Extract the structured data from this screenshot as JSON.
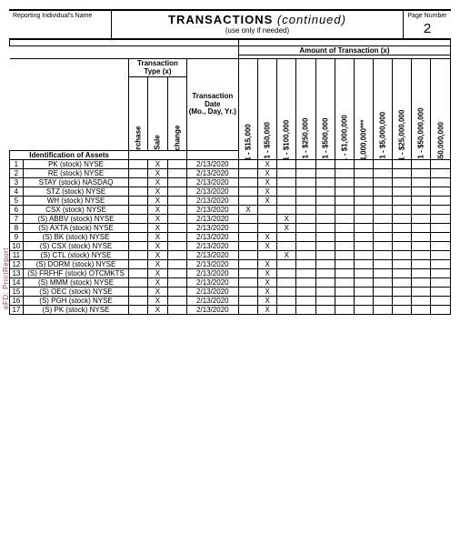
{
  "side_label": "eFD: PrintReport",
  "header": {
    "reporting_label": "Reporting Individual's Name",
    "title_bold": "TRANSACTIONS",
    "title_italic": "(continued)",
    "subtitle": "(use only if needed)",
    "page_label": "Page Number",
    "page_number": "2"
  },
  "columns": {
    "amount_header": "Amount of Transaction (x)",
    "ttype_l1": "Transaction",
    "ttype_l2": "Type (x)",
    "tdate_l1": "Transaction",
    "tdate_l2": "Date",
    "tdate_l3": "(Mo., Day, Yr.)",
    "purchase": "Purchase",
    "sale": "Sale",
    "exchange": "Exchange",
    "id_assets": "Identification of Assets",
    "amounts": [
      "$1,001 - $15,000",
      "$15,001 - $50,000",
      "$50,001 - $100,000",
      "$100,001 - $250,000",
      "$250,001 - $500,000",
      "$500,001 - $1,000,000",
      "Over $1,000,000***",
      "$1,000,001 - $5,000,000",
      "$5,000,001 - $25,000,000",
      "$25,000,001 - $50,000,000",
      "Over $50,000,000"
    ]
  },
  "mark": "X",
  "rows": [
    {
      "n": "1",
      "asset": "PK (stock) NYSE",
      "purchase": "",
      "sale": "X",
      "exchange": "",
      "date": "2/13/2020",
      "amt": [
        0,
        1,
        0,
        0,
        0,
        0,
        0,
        0,
        0,
        0,
        0
      ]
    },
    {
      "n": "2",
      "asset": "RE (stock) NYSE",
      "purchase": "",
      "sale": "X",
      "exchange": "",
      "date": "2/13/2020",
      "amt": [
        0,
        1,
        0,
        0,
        0,
        0,
        0,
        0,
        0,
        0,
        0
      ]
    },
    {
      "n": "3",
      "asset": "STAY (stock) NASDAQ",
      "purchase": "",
      "sale": "X",
      "exchange": "",
      "date": "2/13/2020",
      "amt": [
        0,
        1,
        0,
        0,
        0,
        0,
        0,
        0,
        0,
        0,
        0
      ]
    },
    {
      "n": "4",
      "asset": "STZ (stock) NYSE",
      "purchase": "",
      "sale": "X",
      "exchange": "",
      "date": "2/13/2020",
      "amt": [
        0,
        1,
        0,
        0,
        0,
        0,
        0,
        0,
        0,
        0,
        0
      ]
    },
    {
      "n": "5",
      "asset": "WH (stock) NYSE",
      "purchase": "",
      "sale": "X",
      "exchange": "",
      "date": "2/13/2020",
      "amt": [
        0,
        1,
        0,
        0,
        0,
        0,
        0,
        0,
        0,
        0,
        0
      ]
    },
    {
      "n": "6",
      "asset": "CSX (stock) NYSE",
      "purchase": "",
      "sale": "X",
      "exchange": "",
      "date": "2/13/2020",
      "amt": [
        1,
        0,
        0,
        0,
        0,
        0,
        0,
        0,
        0,
        0,
        0
      ]
    },
    {
      "n": "7",
      "asset": "(S) ABBV (stock) NYSE",
      "purchase": "",
      "sale": "X",
      "exchange": "",
      "date": "2/13/2020",
      "amt": [
        0,
        0,
        1,
        0,
        0,
        0,
        0,
        0,
        0,
        0,
        0
      ]
    },
    {
      "n": "8",
      "asset": "(S) AXTA (stock) NYSE",
      "purchase": "",
      "sale": "X",
      "exchange": "",
      "date": "2/13/2020",
      "amt": [
        0,
        0,
        1,
        0,
        0,
        0,
        0,
        0,
        0,
        0,
        0
      ]
    },
    {
      "n": "9",
      "asset": "(S) BK (stock) NYSE",
      "purchase": "",
      "sale": "X",
      "exchange": "",
      "date": "2/13/2020",
      "amt": [
        0,
        1,
        0,
        0,
        0,
        0,
        0,
        0,
        0,
        0,
        0
      ]
    },
    {
      "n": "10",
      "asset": "(S) CSX (stock) NYSE",
      "purchase": "",
      "sale": "X",
      "exchange": "",
      "date": "2/13/2020",
      "amt": [
        0,
        1,
        0,
        0,
        0,
        0,
        0,
        0,
        0,
        0,
        0
      ]
    },
    {
      "n": "11",
      "asset": "(S) CTL (stock) NYSE",
      "purchase": "",
      "sale": "X",
      "exchange": "",
      "date": "2/13/2020",
      "amt": [
        0,
        0,
        1,
        0,
        0,
        0,
        0,
        0,
        0,
        0,
        0
      ]
    },
    {
      "n": "12",
      "asset": "(S) DORM (stock) NYSE",
      "purchase": "",
      "sale": "X",
      "exchange": "",
      "date": "2/13/2020",
      "amt": [
        0,
        1,
        0,
        0,
        0,
        0,
        0,
        0,
        0,
        0,
        0
      ]
    },
    {
      "n": "13",
      "asset": "(S) FRFHF (stock) OTCMKTS",
      "purchase": "",
      "sale": "X",
      "exchange": "",
      "date": "2/13/2020",
      "amt": [
        0,
        1,
        0,
        0,
        0,
        0,
        0,
        0,
        0,
        0,
        0
      ]
    },
    {
      "n": "14",
      "asset": "(S) MMM (stock) NYSE",
      "purchase": "",
      "sale": "X",
      "exchange": "",
      "date": "2/13/2020",
      "amt": [
        0,
        1,
        0,
        0,
        0,
        0,
        0,
        0,
        0,
        0,
        0
      ]
    },
    {
      "n": "15",
      "asset": "(S) OEC (stock) NYSE",
      "purchase": "",
      "sale": "X",
      "exchange": "",
      "date": "2/13/2020",
      "amt": [
        0,
        1,
        0,
        0,
        0,
        0,
        0,
        0,
        0,
        0,
        0
      ]
    },
    {
      "n": "16",
      "asset": "(S) PGH (stock) NYSE",
      "purchase": "",
      "sale": "X",
      "exchange": "",
      "date": "2/13/2020",
      "amt": [
        0,
        1,
        0,
        0,
        0,
        0,
        0,
        0,
        0,
        0,
        0
      ]
    },
    {
      "n": "17",
      "asset": "(S) PK (stock) NYSE",
      "purchase": "",
      "sale": "X",
      "exchange": "",
      "date": "2/13/2020",
      "amt": [
        0,
        1,
        0,
        0,
        0,
        0,
        0,
        0,
        0,
        0,
        0
      ]
    }
  ]
}
